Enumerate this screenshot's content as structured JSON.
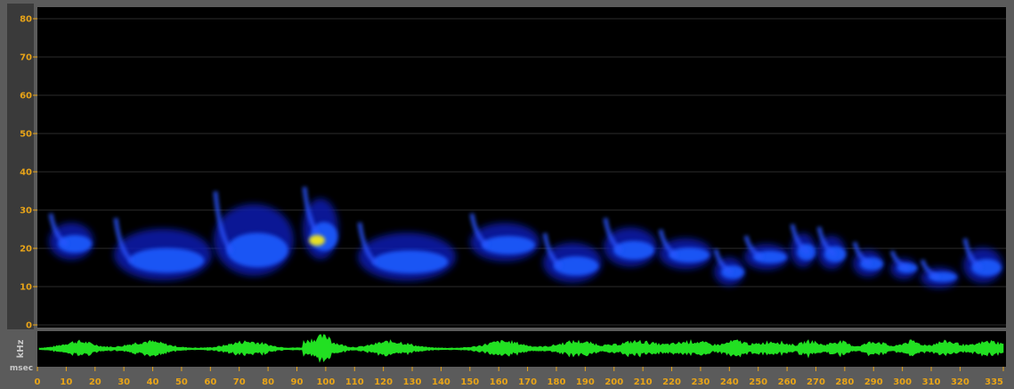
{
  "spectrogram": {
    "y_axis": {
      "label": "kHz",
      "ticks": [
        0,
        10,
        20,
        30,
        40,
        50,
        60,
        70,
        80
      ]
    },
    "x_axis": {
      "label": "msec",
      "ticks": [
        0,
        10,
        20,
        30,
        40,
        50,
        60,
        70,
        80,
        90,
        100,
        110,
        120,
        130,
        140,
        150,
        160,
        170,
        180,
        190,
        200,
        210,
        220,
        230,
        240,
        250,
        260,
        270,
        280,
        290,
        300,
        310,
        320,
        335
      ]
    }
  }
}
